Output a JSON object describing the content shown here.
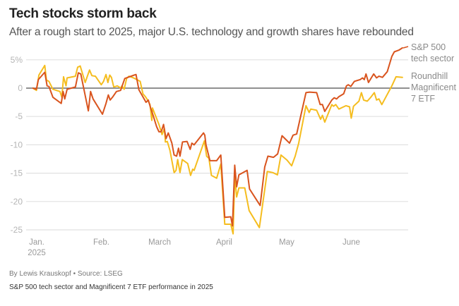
{
  "header": {
    "title": "Tech stocks storm back",
    "subtitle": "After a rough start to 2025, major U.S. technology and growth shares have rebounded"
  },
  "footer": {
    "byline": "By Lewis Krauskopf • Source: LSEG",
    "caption": "S&P 500 tech sector and Magnificent 7 ETF performance in 2025"
  },
  "chart_data": {
    "type": "line",
    "title": "Tech stocks storm back",
    "subtitle": "After a rough start to 2025, major U.S. technology and growth shares have rebounded",
    "xlabel": "",
    "ylabel": "",
    "x_unit": "day of 2025 (0 = Jan. 1)",
    "xlim": [
      0,
      178
    ],
    "ylim": [
      -27,
      7
    ],
    "grid": true,
    "yticks": [
      {
        "value": 5,
        "label": "5%"
      },
      {
        "value": 0,
        "label": "0"
      },
      {
        "value": -5,
        "label": "-5"
      },
      {
        "value": -10,
        "label": "-10"
      },
      {
        "value": -15,
        "label": "-15"
      },
      {
        "value": -20,
        "label": "-20"
      },
      {
        "value": -25,
        "label": "-25"
      }
    ],
    "xticks": [
      {
        "value": 0,
        "label": "Jan.",
        "sublabel": "2025"
      },
      {
        "value": 31,
        "label": "Feb."
      },
      {
        "value": 59,
        "label": "March"
      },
      {
        "value": 90,
        "label": "April"
      },
      {
        "value": 120,
        "label": "May"
      },
      {
        "value": 151,
        "label": "June"
      }
    ],
    "legend_placement": "right (end of lines)",
    "series": [
      {
        "name": "S&P 500 tech sector",
        "legend_lines": [
          "S&P 500",
          "tech sector"
        ],
        "color": "#d9541e",
        "points": [
          [
            0.2,
            0
          ],
          [
            1.9,
            -0.2
          ],
          [
            2.8,
            1.5
          ],
          [
            5.9,
            2.8
          ],
          [
            7,
            0.4
          ],
          [
            7.9,
            0.3
          ],
          [
            9.8,
            -1.6
          ],
          [
            13.8,
            -2.7
          ],
          [
            14.7,
            -0.6
          ],
          [
            15.5,
            -1.9
          ],
          [
            16.6,
            -0.2
          ],
          [
            20.6,
            0.2
          ],
          [
            22,
            2.7
          ],
          [
            23.2,
            2.5
          ],
          [
            26.8,
            -4
          ],
          [
            27.9,
            -0.6
          ],
          [
            29.1,
            -1.9
          ],
          [
            33.6,
            -4.6
          ],
          [
            35.3,
            -2.7
          ],
          [
            36.4,
            -1.2
          ],
          [
            37.3,
            -2.1
          ],
          [
            38.6,
            -1.5
          ],
          [
            40.3,
            -0.6
          ],
          [
            42.3,
            -0.4
          ],
          [
            44.3,
            1.7
          ],
          [
            48.8,
            2.3
          ],
          [
            49.7,
            2.4
          ],
          [
            51.1,
            -0.3
          ],
          [
            53.3,
            -1.7
          ],
          [
            54.5,
            -2.5
          ],
          [
            55.6,
            -2.1
          ],
          [
            56.7,
            -3.5
          ],
          [
            57.9,
            -4.8
          ],
          [
            59.6,
            -6.8
          ],
          [
            60.7,
            -7.7
          ],
          [
            61.8,
            -7.7
          ],
          [
            62.9,
            -6.4
          ],
          [
            64.1,
            -8.9
          ],
          [
            65.2,
            -7.9
          ],
          [
            66.9,
            -9.7
          ],
          [
            68,
            -11.8
          ],
          [
            69.2,
            -12
          ],
          [
            70.1,
            -10.6
          ],
          [
            70.8,
            -12
          ],
          [
            72,
            -9.5
          ],
          [
            74.2,
            -9.4
          ],
          [
            75.7,
            -10.8
          ],
          [
            76.5,
            -9.7
          ],
          [
            77.6,
            -10
          ],
          [
            82.1,
            -7.9
          ],
          [
            82.7,
            -8.3
          ],
          [
            83.3,
            -10
          ],
          [
            85.2,
            -12.8
          ],
          [
            88.4,
            -12.8
          ],
          [
            90.4,
            -11.8
          ],
          [
            92.3,
            -22.8
          ],
          [
            95.2,
            -22.7
          ],
          [
            96,
            -24.3
          ],
          [
            97.1,
            -13.6
          ],
          [
            98,
            -17.4
          ],
          [
            99.1,
            -15.3
          ],
          [
            103,
            -14.5
          ],
          [
            104.2,
            -17.8
          ],
          [
            109.3,
            -20.7
          ],
          [
            111.5,
            -13.9
          ],
          [
            113,
            -12
          ],
          [
            115.7,
            -12.2
          ],
          [
            117.7,
            -11.6
          ],
          [
            119.8,
            -8.4
          ],
          [
            123.4,
            -9.7
          ],
          [
            125.1,
            -8.3
          ],
          [
            126.8,
            -8.1
          ],
          [
            131.3,
            -0.8
          ],
          [
            133,
            -0.7
          ],
          [
            136.4,
            -0.8
          ],
          [
            138.1,
            -2.9
          ],
          [
            139.2,
            -2.9
          ],
          [
            140.3,
            -4.1
          ],
          [
            143.7,
            -2.1
          ],
          [
            144.8,
            -1.7
          ],
          [
            146,
            -1.9
          ],
          [
            147.1,
            -1.5
          ],
          [
            149.4,
            -1
          ],
          [
            150.7,
            0.4
          ],
          [
            151.6,
            0.6
          ],
          [
            152.8,
            0.3
          ],
          [
            154.5,
            1.2
          ],
          [
            157.3,
            1.5
          ],
          [
            158.4,
            1.8
          ],
          [
            159.3,
            1.5
          ],
          [
            160.1,
            2.5
          ],
          [
            161.3,
            1
          ],
          [
            163.8,
            2.5
          ],
          [
            165.2,
            1.8
          ],
          [
            166.3,
            2.1
          ],
          [
            168,
            1.9
          ],
          [
            170.3,
            2.9
          ],
          [
            172.5,
            5.6
          ],
          [
            173.7,
            6.4
          ],
          [
            175.9,
            6.7
          ],
          [
            177.6,
            7.1
          ]
        ]
      },
      {
        "name": "Roundhill Magnificent 7 ETF",
        "legend_lines": [
          "Roundhill",
          "Magnificent",
          "7 ETF"
        ],
        "color": "#f5bd1f",
        "points": [
          [
            0.2,
            0
          ],
          [
            1.9,
            -0.4
          ],
          [
            3.1,
            2.3
          ],
          [
            5.9,
            4
          ],
          [
            6.7,
            1.4
          ],
          [
            7.9,
            1.2
          ],
          [
            9.8,
            -0.2
          ],
          [
            13.2,
            -0.6
          ],
          [
            14.1,
            -1.6
          ],
          [
            14.9,
            2
          ],
          [
            16.1,
            0.4
          ],
          [
            16.6,
            1.8
          ],
          [
            20.6,
            2.1
          ],
          [
            21.7,
            3.7
          ],
          [
            22.9,
            3.9
          ],
          [
            25.3,
            1.0
          ],
          [
            27.4,
            3.2
          ],
          [
            28.5,
            2.2
          ],
          [
            30.2,
            2.1
          ],
          [
            33,
            0.6
          ],
          [
            34.1,
            1.2
          ],
          [
            35.3,
            2.4
          ],
          [
            36.2,
            1.0
          ],
          [
            37.1,
            2.3
          ],
          [
            37.9,
            1.9
          ],
          [
            39,
            0.2
          ],
          [
            40.7,
            0.4
          ],
          [
            42.4,
            0
          ],
          [
            42.9,
            0.4
          ],
          [
            44,
            -0.2
          ],
          [
            45.2,
            1.7
          ],
          [
            46.3,
            2.1
          ],
          [
            48.5,
            1.8
          ],
          [
            50.6,
            1.4
          ],
          [
            51.7,
            1.2
          ],
          [
            53,
            -1.0
          ],
          [
            54.2,
            -1.5
          ],
          [
            55.3,
            -2.1
          ],
          [
            56.4,
            -2.9
          ],
          [
            57.6,
            -3.5
          ],
          [
            57.3,
            -5.7
          ],
          [
            60.7,
            -6.4
          ],
          [
            62.2,
            -8.2
          ],
          [
            63.3,
            -7.1
          ],
          [
            63.8,
            -9.5
          ],
          [
            64.7,
            -9.4
          ],
          [
            66,
            -11.0
          ],
          [
            68,
            -14.9
          ],
          [
            68.9,
            -14.5
          ],
          [
            69.7,
            -12.6
          ],
          [
            70.8,
            -14.9
          ],
          [
            71.9,
            -12.6
          ],
          [
            74.5,
            -13.3
          ],
          [
            75.9,
            -15.4
          ],
          [
            76.9,
            -14.3
          ],
          [
            77.6,
            -14.5
          ],
          [
            82.5,
            -9.3
          ],
          [
            83.6,
            -12.0
          ],
          [
            84.7,
            -12.4
          ],
          [
            85.9,
            -15.4
          ],
          [
            88.4,
            -15.9
          ],
          [
            90.4,
            -13.4
          ],
          [
            92.3,
            -24.0
          ],
          [
            95.2,
            -24.0
          ],
          [
            96.3,
            -25.7
          ],
          [
            97.1,
            -15.5
          ],
          [
            98,
            -19.2
          ],
          [
            99.1,
            -17.6
          ],
          [
            101.9,
            -17.6
          ],
          [
            104,
            -21.6
          ],
          [
            108.9,
            -24.6
          ],
          [
            112.7,
            -14.7
          ],
          [
            115.4,
            -14.9
          ],
          [
            117.6,
            -15.3
          ],
          [
            119.3,
            -11.8
          ],
          [
            122.2,
            -12.7
          ],
          [
            124.4,
            -13.7
          ],
          [
            126.1,
            -12
          ],
          [
            127.8,
            -9.7
          ],
          [
            131.3,
            -3.1
          ],
          [
            132.8,
            -4.3
          ],
          [
            133.6,
            -3.7
          ],
          [
            136.4,
            -3.9
          ],
          [
            138.3,
            -5.5
          ],
          [
            139.2,
            -4.8
          ],
          [
            140.3,
            -6.0
          ],
          [
            143.7,
            -2.9
          ],
          [
            144.5,
            -3.2
          ],
          [
            145.6,
            -2.9
          ],
          [
            147.1,
            -3.7
          ],
          [
            150.5,
            -3.1
          ],
          [
            152.2,
            -3.3
          ],
          [
            153,
            -5.3
          ],
          [
            154.1,
            -3.2
          ],
          [
            156.7,
            -2.3
          ],
          [
            157.9,
            -0.8
          ],
          [
            159,
            -2.1
          ],
          [
            160.7,
            -2.3
          ],
          [
            162.4,
            -1.6
          ],
          [
            164.1,
            -0.8
          ],
          [
            165.2,
            -2.1
          ],
          [
            166.3,
            -1.9
          ],
          [
            167.7,
            -2.9
          ],
          [
            172.5,
            0.4
          ],
          [
            174.5,
            2.0
          ],
          [
            177.6,
            1.9
          ]
        ]
      }
    ]
  }
}
